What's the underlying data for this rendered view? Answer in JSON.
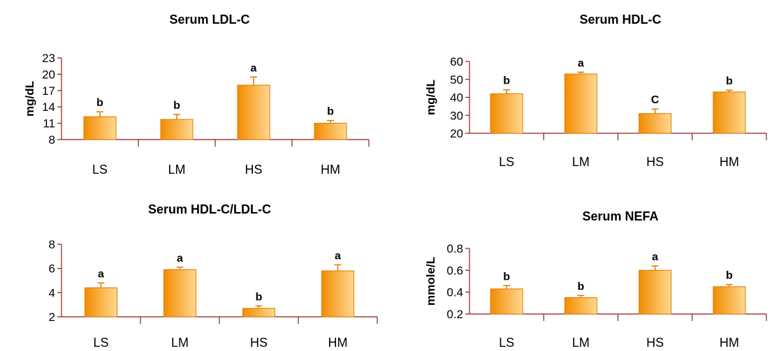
{
  "colors": {
    "bar_dark": "#F28C00",
    "bar_light": "#FFD890",
    "bar_stroke": "#E07800",
    "axis": "#8B1A1A"
  },
  "chart_data": [
    {
      "type": "bar",
      "title": "Serum LDL-C",
      "ylabel": "mg/dL",
      "categories": [
        "LS",
        "LM",
        "HS",
        "HM"
      ],
      "values": [
        12.2,
        11.7,
        18.0,
        11.0
      ],
      "errors": [
        0.9,
        0.9,
        1.5,
        0.5
      ],
      "letters": [
        "b",
        "b",
        "a",
        "b"
      ],
      "ylim": [
        8,
        23
      ],
      "yticks": [
        "8",
        "11",
        "14",
        "17",
        "20",
        "23"
      ],
      "grid": false
    },
    {
      "type": "bar",
      "title": "Serum HDL-C",
      "ylabel": "mg/dL",
      "categories": [
        "LS",
        "LM",
        "HS",
        "HM"
      ],
      "values": [
        42,
        53,
        31,
        43
      ],
      "errors": [
        2.2,
        1.0,
        2.5,
        1.0
      ],
      "letters": [
        "b",
        "a",
        "C",
        "b"
      ],
      "ylim": [
        20,
        60
      ],
      "yticks": [
        "20",
        "30",
        "40",
        "50",
        "60"
      ],
      "grid": false
    },
    {
      "type": "bar",
      "title": "Serum HDL-C/LDL-C",
      "ylabel": "",
      "categories": [
        "LS",
        "LM",
        "HS",
        "HM"
      ],
      "values": [
        4.4,
        5.9,
        2.7,
        5.8
      ],
      "errors": [
        0.4,
        0.2,
        0.2,
        0.5
      ],
      "letters": [
        "a",
        "a",
        "b",
        "a"
      ],
      "ylim": [
        2,
        8
      ],
      "yticks": [
        "2",
        "4",
        "6",
        "8"
      ],
      "grid": false
    },
    {
      "type": "bar",
      "title": "Serum NEFA",
      "ylabel": "mmole/L",
      "categories": [
        "LS",
        "LM",
        "HS",
        "HM"
      ],
      "values": [
        0.43,
        0.35,
        0.6,
        0.45
      ],
      "errors": [
        0.03,
        0.02,
        0.04,
        0.02
      ],
      "letters": [
        "b",
        "b",
        "a",
        "b"
      ],
      "ylim": [
        0.2,
        0.8
      ],
      "yticks": [
        "0.2",
        "0.4",
        "0.6",
        "0.8"
      ],
      "grid": false
    }
  ]
}
